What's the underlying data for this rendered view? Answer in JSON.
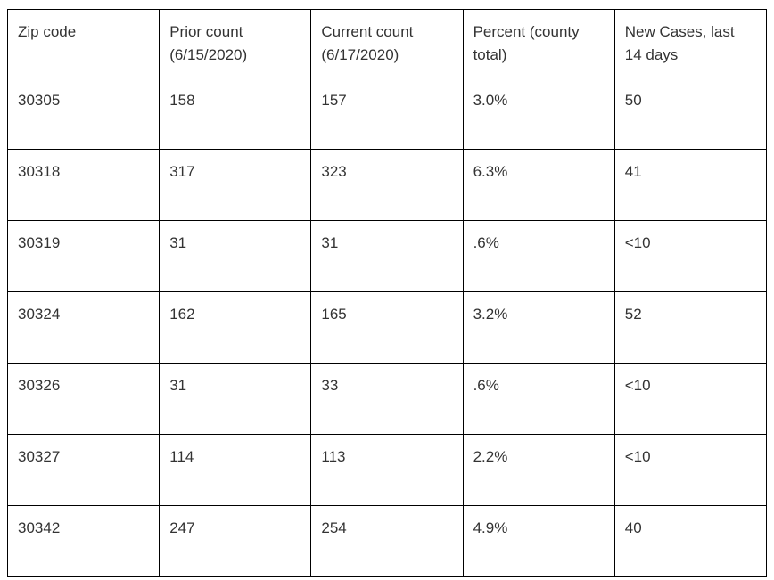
{
  "chart_data": {
    "type": "table",
    "title": "",
    "columns": [
      "Zip code",
      "Prior count (6/15/2020)",
      "Current count (6/17/2020)",
      "Percent (county total)",
      "New Cases, last 14 days"
    ],
    "rows": [
      [
        "30305",
        "158",
        "157",
        "3.0%",
        "50"
      ],
      [
        "30318",
        "317",
        "323",
        "6.3%",
        "41"
      ],
      [
        "30319",
        "31",
        "31",
        ".6%",
        "<10"
      ],
      [
        "30324",
        "162",
        "165",
        "3.2%",
        "52"
      ],
      [
        "30326",
        "31",
        "33",
        ".6%",
        "<10"
      ],
      [
        "30327",
        "114",
        "113",
        "2.2%",
        "<10"
      ],
      [
        "30342",
        "247",
        "254",
        "4.9%",
        "40"
      ]
    ],
    "layout": {
      "grid": "on",
      "header_position": "top"
    }
  },
  "colors": {
    "zip_code_text": "#b01f26",
    "regular_text": "#3a3a3a",
    "bold_text": "#1a1a1a",
    "border": "#000000",
    "background": "#ffffff"
  }
}
